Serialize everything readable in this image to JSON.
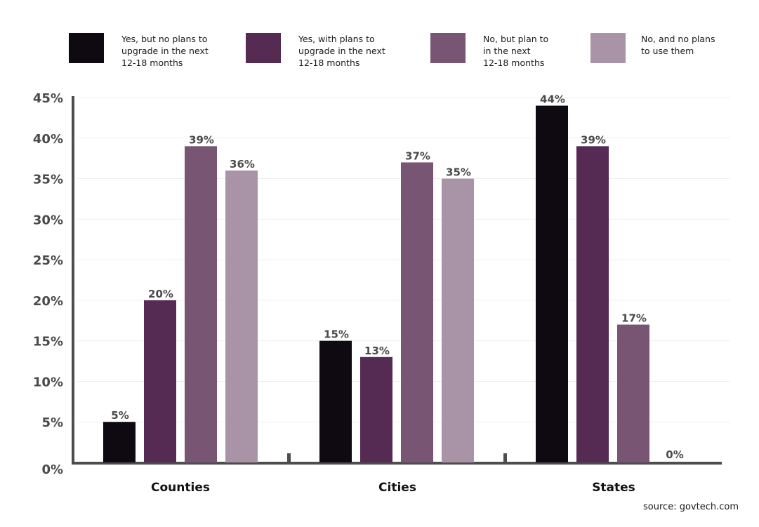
{
  "chart_data": {
    "type": "bar",
    "title": "",
    "xlabel": "",
    "ylabel": "",
    "ylim": [
      0,
      45
    ],
    "yticks": [
      0,
      5,
      10,
      15,
      20,
      25,
      30,
      35,
      40,
      45
    ],
    "ytick_labels": [
      "0%",
      "5%",
      "10%",
      "15%",
      "20%",
      "25%",
      "30%",
      "35%",
      "40%",
      "45%"
    ],
    "grid": true,
    "legend_position": "top",
    "categories": [
      "Counties",
      "Cities",
      "States"
    ],
    "series": [
      {
        "name": "Yes, but no plans to upgrade in the next 12-18 months",
        "color": "#0f0a12",
        "values": [
          5,
          15,
          44
        ]
      },
      {
        "name": "Yes, with plans to upgrade in the next 12-18 months",
        "color": "#552a53",
        "values": [
          20,
          13,
          39
        ]
      },
      {
        "name": "No, but plan to in the next 12-18 months",
        "color": "#775573",
        "values": [
          39,
          37,
          17
        ]
      },
      {
        "name": "No, and no plans to use them",
        "color": "#a993a7",
        "values": [
          36,
          35,
          0
        ]
      }
    ],
    "value_suffix": "%"
  },
  "legend": [
    {
      "label": "Yes, but no plans to\nupgrade in the next\n12-18 months"
    },
    {
      "label": "Yes, with plans to\nupgrade in the next\n12-18 months"
    },
    {
      "label": "No, but plan to\nin the next\n12-18 months"
    },
    {
      "label": "No, and no plans\nto use them"
    }
  ],
  "source": "source: govtech.com"
}
